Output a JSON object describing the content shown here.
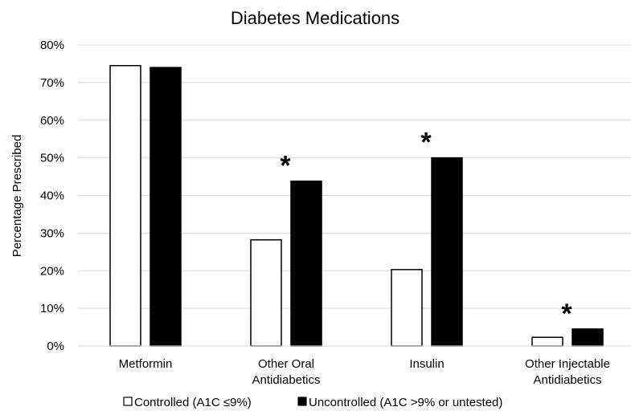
{
  "chart_data": {
    "type": "bar",
    "title": "Diabetes Medications",
    "xlabel": "",
    "ylabel": "Percentage Prescribed",
    "ylim": [
      0,
      80
    ],
    "y_ticks": [
      "0%",
      "10%",
      "20%",
      "30%",
      "40%",
      "50%",
      "60%",
      "70%",
      "80%"
    ],
    "y_tick_values": [
      0,
      10,
      20,
      30,
      40,
      50,
      60,
      70,
      80
    ],
    "categories": [
      [
        "Metformin"
      ],
      [
        "Other Oral",
        "Antidiabetics"
      ],
      [
        "Insulin"
      ],
      [
        "Other Injectable",
        "Antidiabetics"
      ]
    ],
    "series": [
      {
        "name": "Controlled (A1C ≤9%)",
        "values": [
          74.5,
          28.2,
          20.3,
          2.3
        ],
        "fill": "#ffffff",
        "stroke": "#000000"
      },
      {
        "name": "Uncontrolled (A1C >9% or untested)",
        "values": [
          74.0,
          43.8,
          50.0,
          4.5
        ],
        "fill": "#000000",
        "stroke": "#000000"
      }
    ],
    "annotations": [
      {
        "category_index": 1,
        "text": "*"
      },
      {
        "category_index": 2,
        "text": "*"
      },
      {
        "category_index": 3,
        "text": "*"
      }
    ],
    "grid": true,
    "legend": "bottom"
  }
}
